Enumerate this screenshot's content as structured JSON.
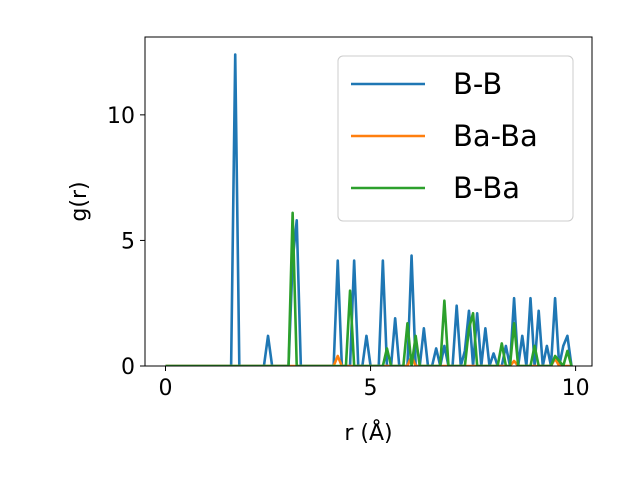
{
  "chart_data": {
    "type": "line",
    "title": "",
    "xlabel": "r (Å)",
    "ylabel": "g(r)",
    "xlim": [
      -0.5,
      10.4
    ],
    "ylim": [
      0,
      13.1
    ],
    "xticks": [
      0,
      5,
      10
    ],
    "yticks": [
      0,
      5,
      10
    ],
    "xtick_labels": [
      "0",
      "5",
      "10"
    ],
    "ytick_labels": [
      "0",
      "5",
      "10"
    ],
    "grid": false,
    "legend_position": "top-right",
    "series": [
      {
        "name": "B-B",
        "color": "#1f77b4",
        "x": [
          0,
          1.6,
          1.7,
          1.8,
          2.4,
          2.5,
          2.6,
          3.0,
          3.1,
          3.2,
          3.3,
          4.1,
          4.2,
          4.3,
          4.4,
          4.5,
          4.6,
          4.7,
          4.8,
          4.9,
          5.0,
          5.1,
          5.2,
          5.3,
          5.4,
          5.5,
          5.6,
          5.7,
          5.8,
          5.9,
          6.0,
          6.1,
          6.2,
          6.3,
          6.4,
          6.5,
          6.6,
          6.7,
          6.8,
          6.9,
          7.0,
          7.1,
          7.2,
          7.3,
          7.4,
          7.5,
          7.6,
          7.7,
          7.8,
          7.9,
          8.0,
          8.1,
          8.2,
          8.3,
          8.4,
          8.5,
          8.6,
          8.7,
          8.8,
          8.9,
          9.0,
          9.1,
          9.2,
          9.3,
          9.4,
          9.5,
          9.6,
          9.7,
          9.8,
          9.9
        ],
        "y": [
          0,
          0,
          12.4,
          0,
          0,
          1.2,
          0,
          0,
          4.2,
          5.8,
          0,
          0,
          4.2,
          0,
          0,
          0,
          4.2,
          0,
          0,
          1.2,
          0,
          0,
          0,
          4.2,
          0,
          0,
          1.9,
          0,
          0,
          0,
          4.4,
          0,
          0,
          1.5,
          0,
          0,
          0.7,
          0,
          0.8,
          0,
          0,
          2.4,
          0,
          0.6,
          2.2,
          0,
          2.1,
          0,
          1.5,
          0,
          0.5,
          0,
          0,
          0.8,
          0,
          2.7,
          0,
          1.2,
          0,
          2.7,
          0,
          2.2,
          0,
          0.8,
          0,
          2.7,
          0,
          0.8,
          1.2,
          0
        ]
      },
      {
        "name": "Ba-Ba",
        "color": "#ff7f0e",
        "x": [
          0,
          4.1,
          4.2,
          4.3,
          5.9,
          6.0,
          6.1,
          8.4,
          8.5,
          8.6,
          9.4,
          9.5,
          9.6,
          9.9
        ],
        "y": [
          0,
          0,
          0.4,
          0,
          0,
          0.4,
          0,
          0,
          0.2,
          0,
          0,
          0.3,
          0,
          0
        ]
      },
      {
        "name": "B-Ba",
        "color": "#2ca02c",
        "x": [
          0,
          3.0,
          3.1,
          3.2,
          4.4,
          4.5,
          4.6,
          5.3,
          5.4,
          5.5,
          5.8,
          5.9,
          6.0,
          6.1,
          6.2,
          6.3,
          6.7,
          6.8,
          6.9,
          7.3,
          7.4,
          7.5,
          7.6,
          7.7,
          8.1,
          8.2,
          8.3,
          8.4,
          8.5,
          8.6,
          8.9,
          9.0,
          9.1,
          9.2,
          9.4,
          9.5,
          9.6,
          9.7,
          9.8,
          9.9
        ],
        "y": [
          0,
          0,
          6.1,
          0,
          0,
          3.0,
          0,
          0,
          0.7,
          0,
          0,
          1.7,
          0,
          1.2,
          0,
          0,
          0,
          2.6,
          0,
          0,
          1.5,
          2.1,
          0,
          0,
          0,
          0.9,
          0,
          0,
          1.7,
          0,
          0,
          0.8,
          0,
          0,
          0,
          0.4,
          0.2,
          0,
          0.6,
          0
        ]
      }
    ]
  }
}
